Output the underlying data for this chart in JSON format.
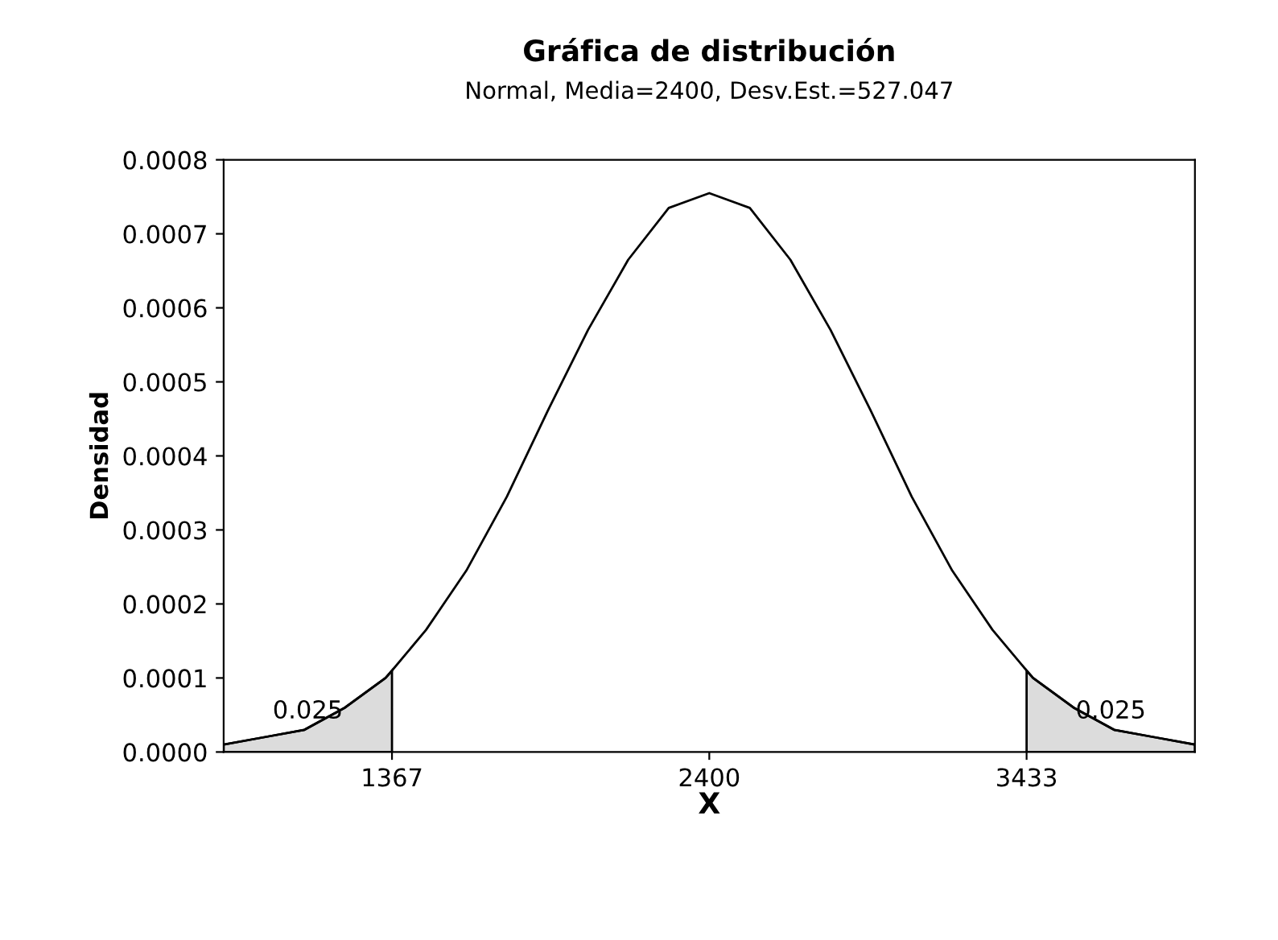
{
  "chart_data": {
    "type": "line",
    "title": "Gráfica de distribución",
    "subtitle": "Normal, Media=2400, Desv.Est.=527.047",
    "xlabel": "X",
    "ylabel": "Densidad",
    "xlim": [
      819,
      3981
    ],
    "xticks": [
      1367,
      2400,
      3433
    ],
    "ylim": [
      0,
      0.0008
    ],
    "yticks": [
      {
        "value": 0,
        "label": "0.0000"
      },
      {
        "value": 0.0001,
        "label": "0.0001"
      },
      {
        "value": 0.0002,
        "label": "0.0002"
      },
      {
        "value": 0.0003,
        "label": "0.0003"
      },
      {
        "value": 0.0004,
        "label": "0.0004"
      },
      {
        "value": 0.0005,
        "label": "0.0005"
      },
      {
        "value": 0.0006,
        "label": "0.0006"
      },
      {
        "value": 0.0007,
        "label": "0.0007"
      },
      {
        "value": 0.0008,
        "label": "0.0008"
      }
    ],
    "grid": false,
    "marker": "none",
    "line_style": "solid",
    "series": [
      {
        "type": "area",
        "color": "#dcdcdc",
        "x": [
          819,
          951,
          1082,
          1214,
          1346,
          1367
        ],
        "values": [
          1e-05,
          2e-05,
          3e-05,
          6e-05,
          0.0001,
          0.00011
        ]
      },
      {
        "type": "area",
        "color": "#dcdcdc",
        "x": [
          3433,
          3454,
          3586,
          3718,
          3849,
          3981
        ],
        "values": [
          0.00011,
          0.0001,
          6e-05,
          3e-05,
          2e-05,
          1e-05
        ]
      },
      {
        "color": "#000000",
        "x": [
          819,
          951,
          1082,
          1214,
          1346,
          1367,
          1478,
          1609,
          1741,
          1873,
          2005,
          2136,
          2268,
          2400,
          2532,
          2664,
          2795,
          2927,
          3059,
          3191,
          3322,
          3433,
          3454,
          3586,
          3718,
          3849,
          3981
        ],
        "values": [
          1e-05,
          2e-05,
          3e-05,
          6e-05,
          0.0001,
          0.00011,
          0.000165,
          0.000245,
          0.000345,
          0.00046,
          0.00057,
          0.000665,
          0.000735,
          0.000755,
          0.000735,
          0.000665,
          0.00057,
          0.00046,
          0.000345,
          0.000245,
          0.000165,
          0.00011,
          0.0001,
          6e-05,
          3e-05,
          2e-05,
          1e-05
        ]
      }
    ],
    "annotations": [
      "0.025",
      "0.025"
    ]
  }
}
